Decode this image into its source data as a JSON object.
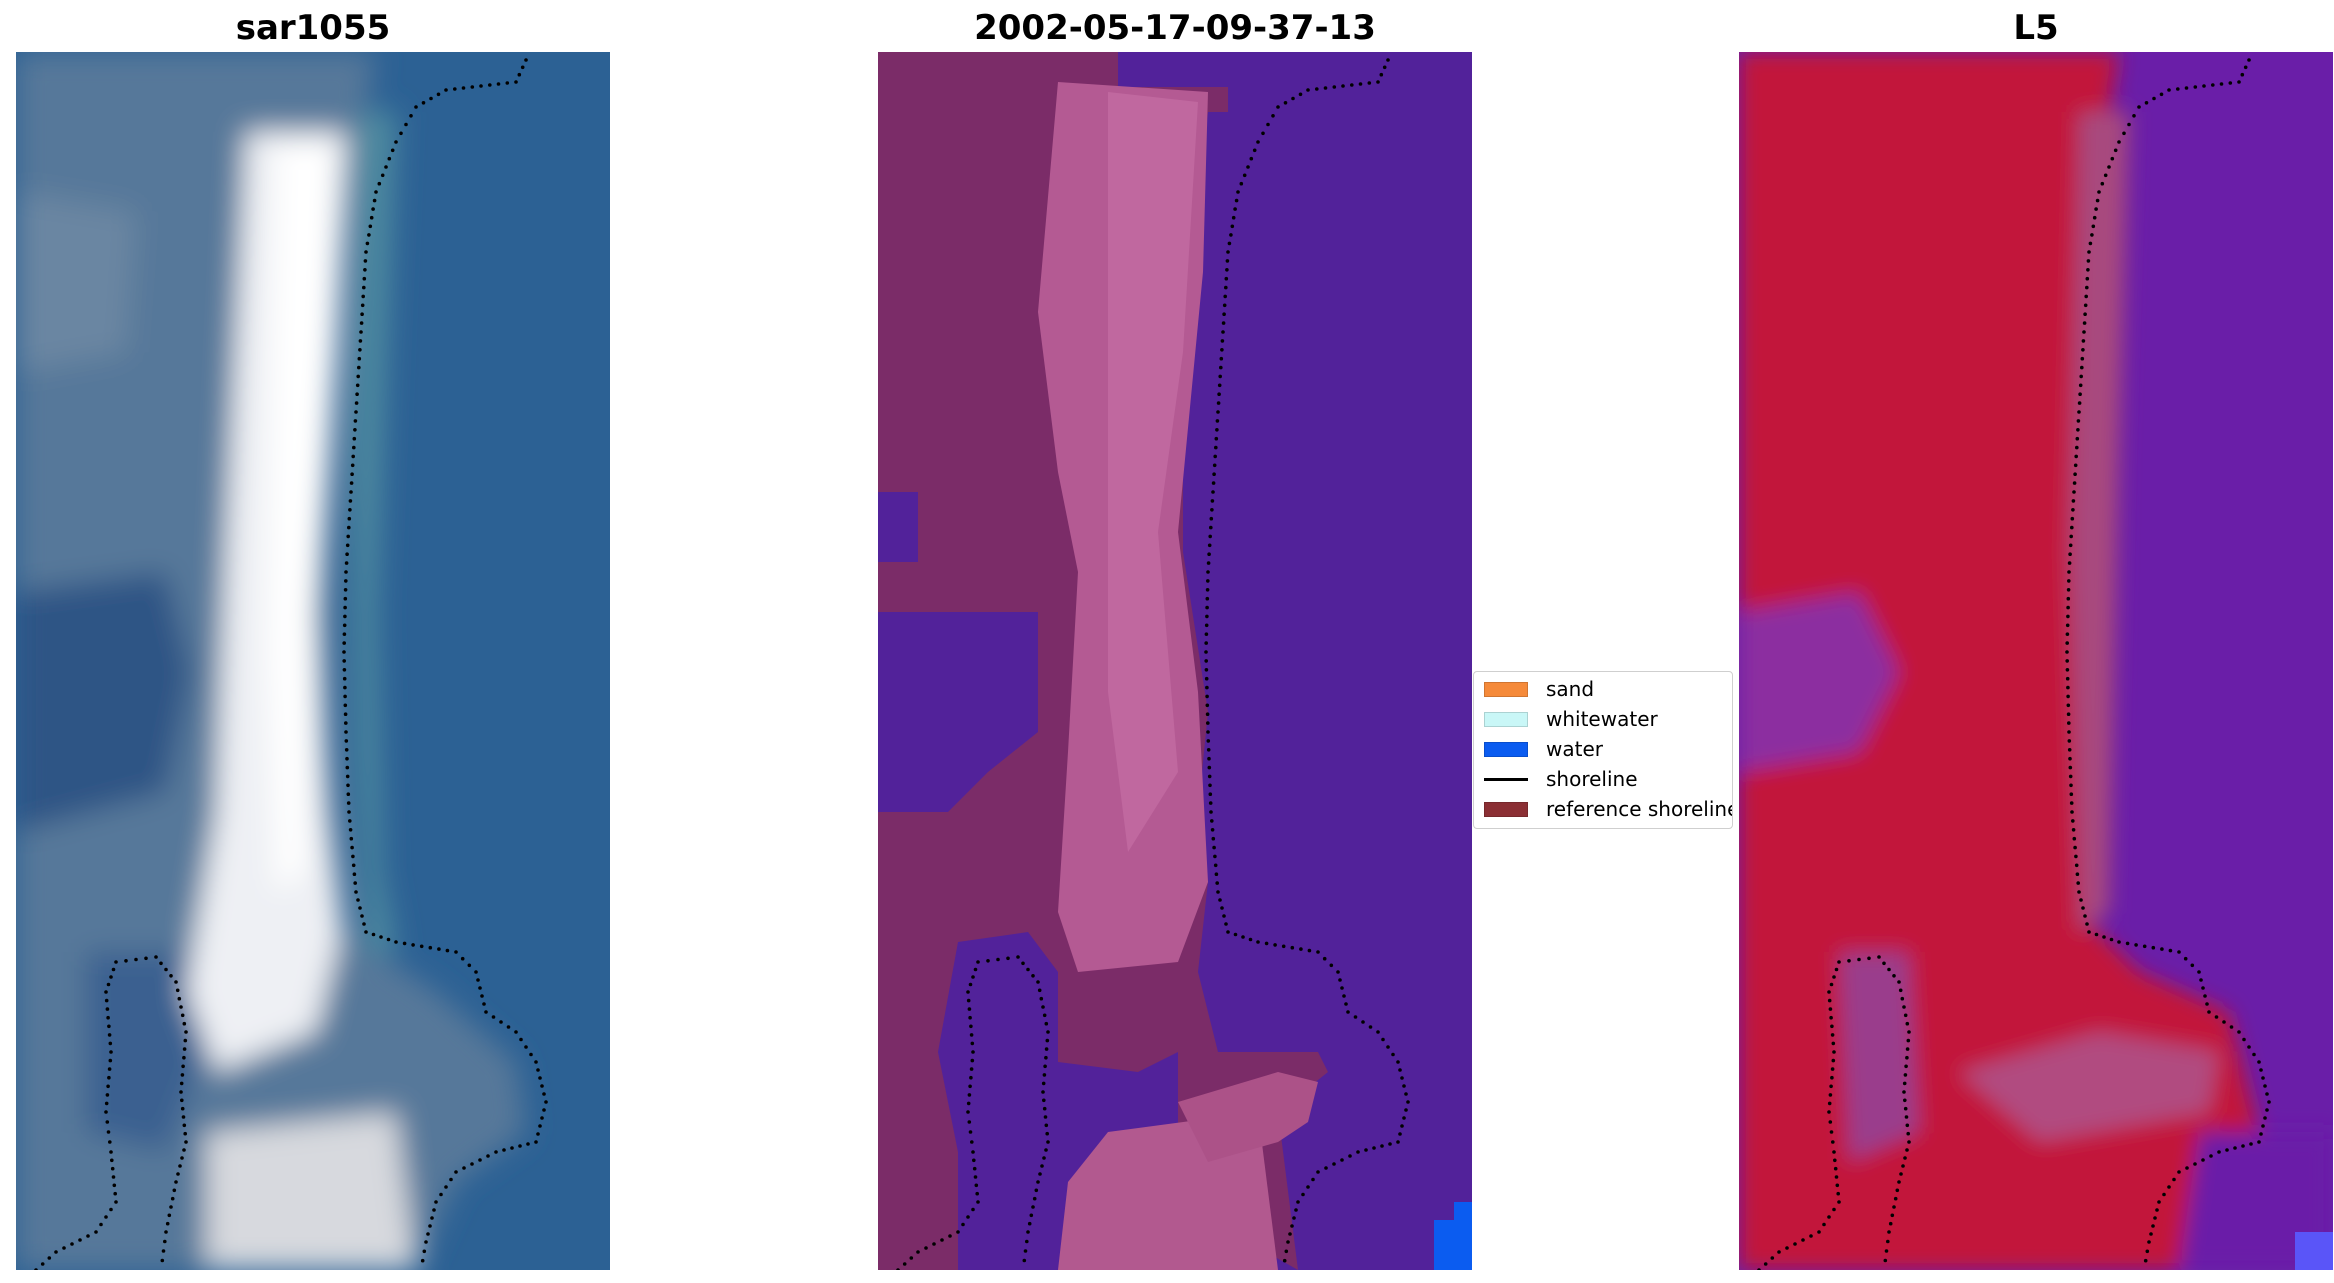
{
  "panels": [
    {
      "title": "sar1055"
    },
    {
      "title": "2002-05-17-09-37-13"
    },
    {
      "title": "L5"
    }
  ],
  "legend": {
    "items": [
      {
        "label": "sand",
        "color": "#f58a3a"
      },
      {
        "label": "whitewater",
        "color": "#c9f7f7"
      },
      {
        "label": "water",
        "color": "#0b5cf0"
      },
      {
        "label": "shoreline",
        "color": "#000000"
      },
      {
        "label": "reference shoreline",
        "color": "#8b2f34"
      }
    ]
  },
  "colors": {
    "panel1": {
      "water": "#2e6496",
      "sand": "#f2f2f4",
      "land": "#5b7e9c"
    },
    "panel2": {
      "water": "#52229a",
      "sand": "#b65e96",
      "land": "#7b2c68",
      "corner": "#0b5cf0"
    },
    "panel3": {
      "water": "#6a1ea8",
      "sand": "#c2183a",
      "transition": "#a84a7e",
      "corner": "#5a55f8"
    },
    "shoreline_dots": "#000000"
  }
}
